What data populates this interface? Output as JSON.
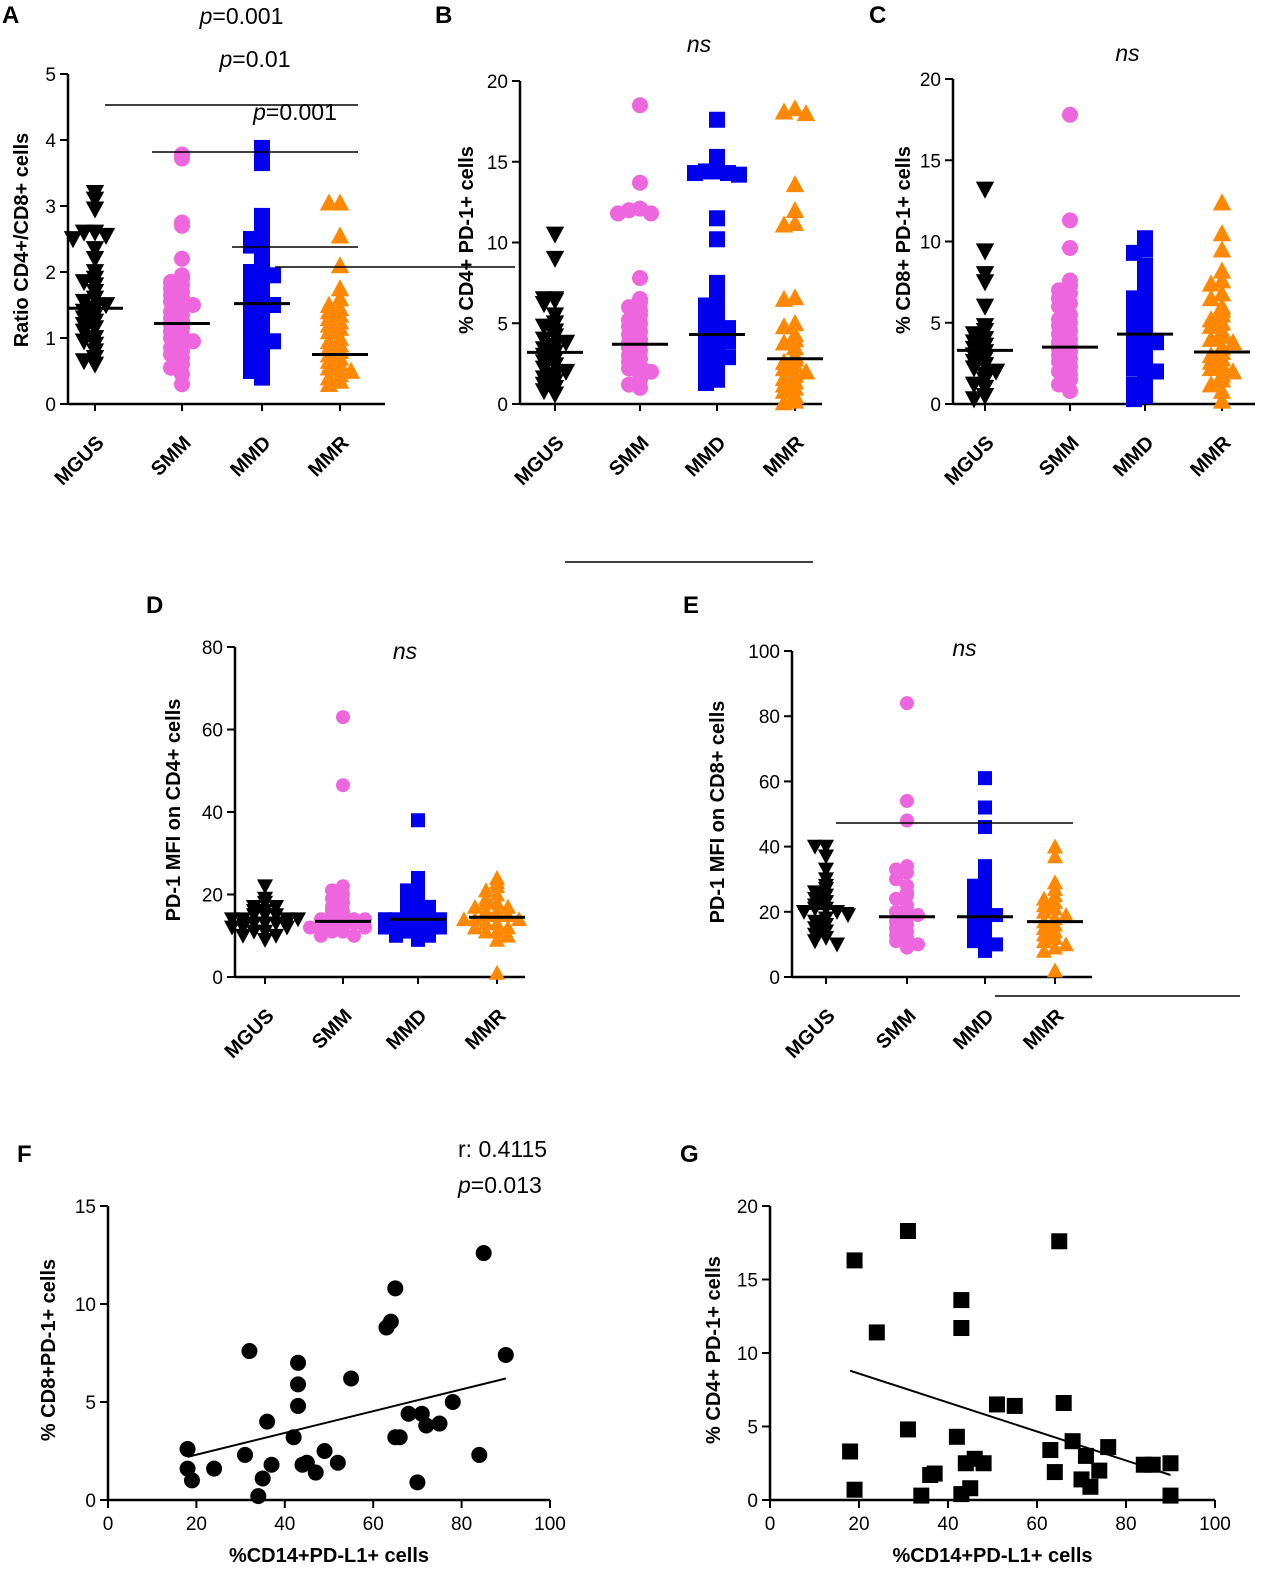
{
  "figure": {
    "panels": [
      "A",
      "B",
      "C",
      "D",
      "E",
      "F",
      "G"
    ]
  },
  "chart_data": [
    {
      "id": "A",
      "type": "scatter",
      "subtype": "dot-plot",
      "ylabel": "Ratio CD4+/CD8+ cells",
      "ylim": [
        0,
        5
      ],
      "yticks": [
        0,
        1,
        2,
        3,
        4,
        5
      ],
      "categories": [
        "MGUS",
        "SMM",
        "MMD",
        "MMR"
      ],
      "groups": [
        {
          "name": "MGUS",
          "color": "#000000",
          "marker": "triangle-down",
          "median": 1.45,
          "values": [
            3.2,
            3.1,
            2.95,
            2.6,
            2.6,
            2.55,
            2.5,
            2.35,
            2.2,
            2.0,
            1.9,
            1.85,
            1.8,
            1.7,
            1.6,
            1.55,
            1.5,
            1.45,
            1.4,
            1.35,
            1.3,
            1.25,
            1.2,
            1.15,
            1.1,
            1.0,
            0.95,
            0.9,
            0.8,
            0.7,
            0.65,
            0.6
          ]
        },
        {
          "name": "SMM",
          "color": "#ee66dd",
          "marker": "circle",
          "median": 1.22,
          "values": [
            3.78,
            3.72,
            2.75,
            2.7,
            2.2,
            1.95,
            1.9,
            1.85,
            1.8,
            1.75,
            1.7,
            1.65,
            1.6,
            1.55,
            1.5,
            1.45,
            1.4,
            1.35,
            1.3,
            1.25,
            1.2,
            1.15,
            1.1,
            1.05,
            1.0,
            0.95,
            0.9,
            0.85,
            0.8,
            0.75,
            0.7,
            0.6,
            0.55,
            0.45,
            0.3
          ]
        },
        {
          "name": "MMD",
          "color": "#0000ee",
          "marker": "square",
          "median": 1.52,
          "values": [
            3.88,
            3.65,
            2.85,
            2.75,
            2.55,
            2.5,
            2.45,
            2.4,
            2.3,
            2.25,
            2.15,
            2.05,
            2.0,
            1.95,
            1.9,
            1.85,
            1.8,
            1.75,
            1.7,
            1.6,
            1.55,
            1.5,
            1.45,
            1.4,
            1.35,
            1.3,
            1.25,
            1.2,
            1.15,
            1.1,
            1.05,
            1.0,
            0.95,
            0.9,
            0.85,
            0.8,
            0.75,
            0.7,
            0.65,
            0.6,
            0.5,
            0.4
          ]
        },
        {
          "name": "MMR",
          "color": "#ff8800",
          "marker": "triangle-up",
          "median": 0.75,
          "values": [
            3.05,
            3.05,
            2.55,
            2.1,
            1.75,
            1.6,
            1.5,
            1.45,
            1.4,
            1.35,
            1.3,
            1.25,
            1.2,
            1.15,
            1.1,
            1.0,
            0.95,
            0.9,
            0.85,
            0.8,
            0.75,
            0.7,
            0.65,
            0.6,
            0.55,
            0.5,
            0.45,
            0.4,
            0.35,
            0.3
          ]
        }
      ],
      "comparisons": [
        {
          "from": 0,
          "to": 3,
          "p_prefix": "p",
          "p_value": "=0.001"
        },
        {
          "from": 1,
          "to": 3,
          "p_prefix": "p",
          "p_value": "=0.01"
        },
        {
          "from": 2,
          "to": 3,
          "p_prefix": "p",
          "p_value": "=0.001"
        }
      ]
    },
    {
      "id": "B",
      "type": "scatter",
      "subtype": "dot-plot",
      "ylabel": "% CD4+ PD-1+ cells",
      "ylim": [
        0,
        20
      ],
      "yticks": [
        0,
        5,
        10,
        15,
        20
      ],
      "categories": [
        "MGUS",
        "SMM",
        "MMD",
        "MMR"
      ],
      "groups": [
        {
          "name": "MGUS",
          "color": "#000000",
          "marker": "triangle-down",
          "median": 3.2,
          "values": [
            10.5,
            9.0,
            6.5,
            6.5,
            6.4,
            6.2,
            5.5,
            5.0,
            4.8,
            4.5,
            4.2,
            4.0,
            3.8,
            3.6,
            3.4,
            3.2,
            3.0,
            2.8,
            2.6,
            2.4,
            2.2,
            2.0,
            1.8,
            1.6,
            1.4,
            1.2,
            1.0,
            0.8,
            0.6
          ]
        },
        {
          "name": "SMM",
          "color": "#ee66dd",
          "marker": "circle",
          "median": 3.7,
          "values": [
            18.5,
            13.7,
            12.1,
            12.0,
            11.8,
            11.8,
            7.8,
            6.5,
            6.3,
            6.0,
            5.8,
            5.5,
            5.2,
            5.0,
            4.8,
            4.5,
            4.3,
            4.0,
            3.8,
            3.7,
            3.5,
            3.3,
            3.0,
            2.8,
            2.6,
            2.4,
            2.2,
            2.0,
            1.8,
            1.5,
            1.2,
            1.0
          ]
        },
        {
          "name": "MMD",
          "color": "#0000ee",
          "marker": "square",
          "median": 4.3,
          "values": [
            17.6,
            15.3,
            14.4,
            14.4,
            14.3,
            14.3,
            14.2,
            11.5,
            10.2,
            7.5,
            7.0,
            6.5,
            6.3,
            6.1,
            5.8,
            5.6,
            5.4,
            5.2,
            5.0,
            4.8,
            4.7,
            4.5,
            4.3,
            4.2,
            4.0,
            3.9,
            3.7,
            3.5,
            3.3,
            3.1,
            2.9,
            2.7,
            2.5,
            2.3,
            2.1,
            1.9,
            1.7,
            1.5,
            1.3
          ]
        },
        {
          "name": "MMR",
          "color": "#ff8800",
          "marker": "triangle-up",
          "median": 2.8,
          "values": [
            18.3,
            18.1,
            18.0,
            13.6,
            12.0,
            11.2,
            11.1,
            6.6,
            6.5,
            5.0,
            4.8,
            4.3,
            4.0,
            3.8,
            3.5,
            3.0,
            2.8,
            2.6,
            2.4,
            2.2,
            2.0,
            1.8,
            1.6,
            1.4,
            1.2,
            1.0,
            0.8,
            0.5,
            0.2,
            0.1
          ]
        }
      ],
      "comparisons": [
        {
          "from": 0,
          "to": 3,
          "label": "ns"
        }
      ]
    },
    {
      "id": "C",
      "type": "scatter",
      "subtype": "dot-plot",
      "ylabel": "% CD8+ PD-1+ cells",
      "ylim": [
        0,
        20
      ],
      "yticks": [
        0,
        5,
        10,
        15,
        20
      ],
      "categories": [
        "MGUS",
        "SMM",
        "MMD",
        "MMR"
      ],
      "groups": [
        {
          "name": "MGUS",
          "color": "#000000",
          "marker": "triangle-down",
          "median": 3.3,
          "values": [
            13.2,
            9.4,
            8.0,
            7.5,
            6.0,
            4.8,
            4.5,
            4.3,
            4.0,
            3.8,
            3.6,
            3.4,
            3.2,
            3.0,
            2.8,
            2.6,
            2.4,
            2.2,
            2.0,
            1.8,
            1.5,
            1.2,
            1.0,
            0.5,
            0.3
          ]
        },
        {
          "name": "SMM",
          "color": "#ee66dd",
          "marker": "circle",
          "median": 3.5,
          "values": [
            17.8,
            11.3,
            9.6,
            7.6,
            7.3,
            7.0,
            6.8,
            6.5,
            6.2,
            6.0,
            5.5,
            5.2,
            5.0,
            4.8,
            4.5,
            4.3,
            4.0,
            3.8,
            3.6,
            3.4,
            3.2,
            3.0,
            2.8,
            2.6,
            2.3,
            2.0,
            1.8,
            1.5,
            1.2,
            0.8
          ]
        },
        {
          "name": "MMD",
          "color": "#0000ee",
          "marker": "square",
          "median": 4.3,
          "values": [
            10.2,
            9.5,
            9.3,
            8.5,
            8.0,
            7.5,
            7.0,
            6.8,
            6.5,
            6.2,
            6.0,
            5.8,
            5.5,
            5.3,
            5.0,
            4.8,
            4.6,
            4.4,
            4.2,
            4.0,
            3.8,
            3.6,
            3.4,
            3.2,
            3.0,
            2.8,
            2.6,
            2.4,
            2.2,
            2.0,
            1.8,
            1.5,
            1.2,
            1.0,
            0.5,
            0.3
          ]
        },
        {
          "name": "MMR",
          "color": "#ff8800",
          "marker": "triangle-up",
          "median": 3.2,
          "values": [
            12.4,
            10.5,
            9.5,
            8.2,
            7.6,
            7.4,
            6.8,
            6.5,
            6.0,
            5.8,
            5.5,
            5.2,
            5.0,
            4.8,
            4.5,
            4.2,
            4.0,
            3.8,
            3.5,
            3.2,
            3.0,
            2.8,
            2.6,
            2.4,
            2.2,
            2.0,
            1.8,
            1.5,
            1.2,
            0.8,
            0.2
          ]
        }
      ],
      "comparisons": [
        {
          "from": 0,
          "to": 3,
          "label": "ns"
        }
      ]
    },
    {
      "id": "D",
      "type": "scatter",
      "subtype": "dot-plot",
      "ylabel": "PD-1 MFI on CD4+ cells",
      "ylim": [
        0,
        80
      ],
      "yticks": [
        0,
        20,
        40,
        60,
        80
      ],
      "categories": [
        "MGUS",
        "SMM",
        "MMD",
        "MMR"
      ],
      "groups": [
        {
          "name": "MGUS",
          "color": "#000000",
          "marker": "triangle-down",
          "median": 14,
          "values": [
            22,
            19,
            18,
            17,
            17,
            16,
            16,
            15,
            15,
            15,
            14,
            14,
            14,
            14,
            13,
            13,
            13,
            12,
            12,
            12,
            11,
            11,
            10,
            10,
            9
          ]
        },
        {
          "name": "SMM",
          "color": "#ee66dd",
          "marker": "circle",
          "median": 13.5,
          "values": [
            63,
            46.5,
            22,
            21,
            20,
            19,
            18,
            17,
            16,
            16,
            15,
            15,
            14,
            14,
            14,
            13,
            13,
            13,
            12,
            12,
            12,
            11,
            11,
            10,
            10
          ]
        },
        {
          "name": "MMD",
          "color": "#0000ee",
          "marker": "square",
          "median": 14,
          "values": [
            38,
            24,
            23,
            22,
            21,
            20,
            19,
            18,
            17,
            17,
            16,
            16,
            15,
            15,
            15,
            14,
            14,
            14,
            13,
            13,
            13,
            12,
            12,
            12,
            11,
            11,
            10,
            10,
            9
          ]
        },
        {
          "name": "MMR",
          "color": "#ff8800",
          "marker": "triangle-up",
          "median": 14.5,
          "values": [
            24,
            23,
            22,
            21,
            20,
            19,
            18,
            18,
            17,
            17,
            16,
            16,
            15,
            15,
            15,
            14,
            14,
            14,
            13,
            13,
            12,
            12,
            11,
            11,
            10,
            9,
            1
          ]
        }
      ],
      "comparisons": [
        {
          "from": 0,
          "to": 3,
          "label": "ns"
        }
      ]
    },
    {
      "id": "E",
      "type": "scatter",
      "subtype": "dot-plot",
      "ylabel": "PD-1 MFI on CD8+ cells",
      "ylim": [
        0,
        100
      ],
      "yticks": [
        0,
        20,
        40,
        60,
        80,
        100
      ],
      "categories": [
        "MGUS",
        "SMM",
        "MMD",
        "MMR"
      ],
      "groups": [
        {
          "name": "MGUS",
          "color": "#000000",
          "marker": "triangle-down",
          "median": 21,
          "values": [
            40,
            40,
            37,
            33,
            30,
            28,
            27,
            26,
            25,
            24,
            23,
            22,
            21,
            21,
            20,
            20,
            19,
            18,
            17,
            16,
            15,
            14,
            13,
            12,
            11,
            10
          ]
        },
        {
          "name": "SMM",
          "color": "#ee66dd",
          "marker": "circle",
          "median": 18.5,
          "values": [
            84,
            54,
            48,
            34,
            33,
            32,
            30,
            28,
            26,
            25,
            24,
            22,
            21,
            20,
            19,
            18,
            17,
            16,
            15,
            14,
            13,
            12,
            11,
            10,
            9
          ]
        },
        {
          "name": "MMD",
          "color": "#0000ee",
          "marker": "square",
          "median": 18.5,
          "values": [
            61,
            52,
            46,
            34,
            30,
            29,
            28,
            27,
            26,
            25,
            24,
            22,
            21,
            20,
            19,
            18,
            17,
            16,
            15,
            14,
            13,
            12,
            11,
            10,
            8
          ]
        },
        {
          "name": "MMR",
          "color": "#ff8800",
          "marker": "triangle-up",
          "median": 17,
          "values": [
            40,
            37,
            29,
            27,
            25,
            24,
            23,
            22,
            21,
            20,
            19,
            18,
            17,
            16,
            15,
            14,
            13,
            12,
            11,
            10,
            9,
            8,
            2
          ]
        }
      ],
      "comparisons": [
        {
          "from": 0,
          "to": 3,
          "label": "ns"
        }
      ]
    },
    {
      "id": "F",
      "type": "scatter",
      "xlabel": "%CD14+PD-L1+ cells",
      "ylabel": "% CD8+PD-1+ cells",
      "xlim": [
        0,
        100
      ],
      "xticks": [
        0,
        20,
        40,
        60,
        80,
        100
      ],
      "ylim": [
        0,
        15
      ],
      "yticks": [
        0,
        5,
        10,
        15
      ],
      "marker": "circle",
      "color": "#000000",
      "x": [
        18,
        18,
        19,
        24,
        31,
        32,
        34,
        35,
        36,
        37,
        42,
        43,
        43,
        43,
        44,
        45,
        47,
        49,
        52,
        55,
        63,
        64,
        65,
        65,
        66,
        68,
        70,
        71,
        72,
        75,
        78,
        84,
        85,
        90
      ],
      "y": [
        1.6,
        2.6,
        1.0,
        1.6,
        2.3,
        7.6,
        0.2,
        1.1,
        4.0,
        1.8,
        3.2,
        7.0,
        5.9,
        4.8,
        1.8,
        1.9,
        1.4,
        2.5,
        1.9,
        6.2,
        8.8,
        9.1,
        10.8,
        3.2,
        3.2,
        4.4,
        0.9,
        4.4,
        3.8,
        3.9,
        5.0,
        2.3,
        12.6,
        7.4
      ],
      "fit_line": {
        "x": [
          18,
          90
        ],
        "y": [
          2.2,
          6.2
        ]
      },
      "stats": {
        "r_label": "r: 0.4115",
        "p_prefix": "p",
        "p_value": "=0.013"
      }
    },
    {
      "id": "G",
      "type": "scatter",
      "xlabel": "%CD14+PD-L1+ cells",
      "ylabel": "% CD4+ PD-1+ cells",
      "xlim": [
        0,
        100
      ],
      "xticks": [
        0,
        20,
        40,
        60,
        80,
        100
      ],
      "ylim": [
        0,
        20
      ],
      "yticks": [
        0,
        5,
        10,
        15,
        20
      ],
      "marker": "square",
      "color": "#000000",
      "x": [
        18,
        19,
        19,
        24,
        31,
        31,
        34,
        36,
        37,
        42,
        43,
        43,
        43,
        44,
        45,
        46,
        48,
        51,
        55,
        63,
        64,
        65,
        66,
        68,
        70,
        71,
        72,
        74,
        76,
        84,
        86,
        90,
        90
      ],
      "y": [
        3.3,
        0.7,
        16.3,
        11.4,
        18.3,
        4.8,
        0.3,
        1.7,
        1.8,
        4.3,
        13.6,
        11.7,
        0.4,
        2.5,
        0.8,
        2.8,
        2.5,
        6.5,
        6.4,
        3.4,
        1.9,
        17.6,
        6.6,
        4.0,
        1.4,
        3.0,
        0.9,
        2.0,
        3.6,
        2.4,
        2.4,
        2.5,
        0.3
      ],
      "fit_line": {
        "x": [
          18,
          90
        ],
        "y": [
          8.8,
          1.7
        ]
      }
    }
  ]
}
